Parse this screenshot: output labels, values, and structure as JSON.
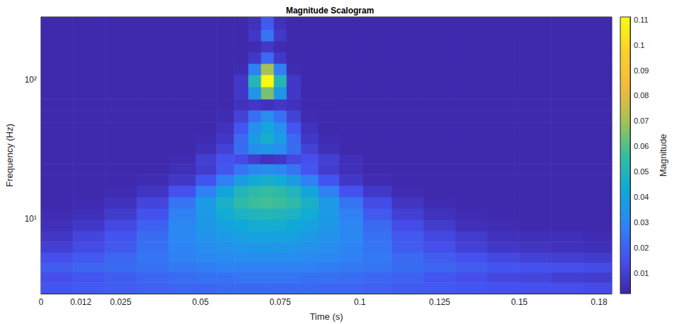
{
  "chart_data": {
    "type": "heatmap",
    "title": "Magnitude Scalogram",
    "x_label": "Time (s)",
    "y_label": "Frequency (Hz)",
    "log": "y",
    "grid": false,
    "xlim": [
      0,
      0.179
    ],
    "xticks": [
      0,
      {
        "value": 0.0125,
        "label": "0.012"
      },
      0.025,
      0.05,
      0.075,
      0.1,
      0.125,
      0.15,
      {
        "value": 0.175,
        "label": "0.18"
      }
    ],
    "ylim": [
      2.9,
      285
    ],
    "yticks": [
      {
        "value": 10,
        "label": "10¹"
      },
      {
        "value": 100,
        "label": "10²"
      }
    ],
    "x": [
      0.005,
      0.015,
      0.025,
      0.035,
      0.045,
      0.052,
      0.058,
      0.063,
      0.067,
      0.071,
      0.075,
      0.079,
      0.084,
      0.09,
      0.097,
      0.105,
      0.115,
      0.125,
      0.135,
      0.145,
      0.155,
      0.165,
      0.175
    ],
    "y": [
      3.2,
      3.8,
      4.5,
      5.3,
      6.3,
      7.5,
      9,
      11,
      13,
      16,
      19,
      23,
      27,
      32,
      38,
      45,
      55,
      67,
      80,
      100,
      120,
      145,
      175,
      210,
      255
    ],
    "values": [
      [
        0.017,
        0.018,
        0.019,
        0.02,
        0.021,
        0.021,
        0.022,
        0.022,
        0.022,
        0.022,
        0.022,
        0.022,
        0.022,
        0.021,
        0.021,
        0.02,
        0.019,
        0.018,
        0.017,
        0.016,
        0.015,
        0.015,
        0.014
      ],
      [
        0.015,
        0.017,
        0.019,
        0.021,
        0.023,
        0.024,
        0.024,
        0.025,
        0.025,
        0.025,
        0.025,
        0.025,
        0.024,
        0.024,
        0.023,
        0.021,
        0.02,
        0.017,
        0.015,
        0.013,
        0.012,
        0.01,
        0.009
      ],
      [
        0.019,
        0.021,
        0.022,
        0.024,
        0.026,
        0.027,
        0.028,
        0.028,
        0.028,
        0.028,
        0.028,
        0.028,
        0.028,
        0.027,
        0.026,
        0.025,
        0.023,
        0.021,
        0.019,
        0.017,
        0.016,
        0.015,
        0.014
      ],
      [
        0.015,
        0.018,
        0.021,
        0.025,
        0.028,
        0.03,
        0.031,
        0.032,
        0.032,
        0.032,
        0.032,
        0.032,
        0.031,
        0.03,
        0.028,
        0.026,
        0.022,
        0.019,
        0.016,
        0.013,
        0.011,
        0.01,
        0.009
      ],
      [
        0.01,
        0.014,
        0.018,
        0.024,
        0.029,
        0.032,
        0.034,
        0.035,
        0.036,
        0.036,
        0.036,
        0.035,
        0.034,
        0.032,
        0.029,
        0.025,
        0.019,
        0.015,
        0.011,
        0.008,
        0.007,
        0.006,
        0.005
      ],
      [
        0.008,
        0.012,
        0.017,
        0.023,
        0.03,
        0.034,
        0.037,
        0.039,
        0.04,
        0.04,
        0.04,
        0.039,
        0.037,
        0.034,
        0.03,
        0.024,
        0.018,
        0.013,
        0.009,
        0.006,
        0.005,
        0.005,
        0.004
      ],
      [
        0.005,
        0.008,
        0.013,
        0.02,
        0.03,
        0.036,
        0.04,
        0.043,
        0.045,
        0.045,
        0.045,
        0.043,
        0.04,
        0.036,
        0.03,
        0.022,
        0.014,
        0.009,
        0.005,
        0.004,
        0.003,
        0.003,
        0.003
      ],
      [
        0.004,
        0.005,
        0.009,
        0.016,
        0.028,
        0.037,
        0.044,
        0.048,
        0.05,
        0.051,
        0.05,
        0.048,
        0.044,
        0.037,
        0.028,
        0.018,
        0.01,
        0.006,
        0.004,
        0.003,
        0.003,
        0.003,
        0.003
      ],
      [
        0.003,
        0.004,
        0.006,
        0.012,
        0.025,
        0.037,
        0.047,
        0.054,
        0.057,
        0.058,
        0.057,
        0.054,
        0.047,
        0.037,
        0.025,
        0.014,
        0.007,
        0.004,
        0.003,
        0.003,
        0.003,
        0.003,
        0.003
      ],
      [
        0.003,
        0.003,
        0.004,
        0.007,
        0.016,
        0.028,
        0.041,
        0.05,
        0.054,
        0.056,
        0.054,
        0.05,
        0.041,
        0.028,
        0.016,
        0.008,
        0.004,
        0.003,
        0.003,
        0.003,
        0.003,
        0.003,
        0.003
      ],
      [
        0.003,
        0.003,
        0.003,
        0.004,
        0.008,
        0.017,
        0.028,
        0.038,
        0.044,
        0.046,
        0.044,
        0.038,
        0.028,
        0.017,
        0.008,
        0.004,
        0.003,
        0.003,
        0.003,
        0.003,
        0.003,
        0.003,
        0.003
      ],
      [
        0.003,
        0.003,
        0.003,
        0.003,
        0.005,
        0.009,
        0.017,
        0.025,
        0.03,
        0.032,
        0.03,
        0.025,
        0.017,
        0.009,
        0.005,
        0.003,
        0.003,
        0.003,
        0.003,
        0.003,
        0.003,
        0.003,
        0.003
      ],
      [
        0.003,
        0.003,
        0.003,
        0.003,
        0.004,
        0.01,
        0.016,
        0.014,
        0.009,
        0.006,
        0.008,
        0.013,
        0.015,
        0.01,
        0.005,
        0.003,
        0.003,
        0.003,
        0.003,
        0.003,
        0.003,
        0.003,
        0.003
      ],
      [
        0.003,
        0.003,
        0.003,
        0.003,
        0.003,
        0.005,
        0.011,
        0.023,
        0.032,
        0.036,
        0.032,
        0.023,
        0.011,
        0.005,
        0.003,
        0.003,
        0.003,
        0.003,
        0.003,
        0.003,
        0.003,
        0.003,
        0.003
      ],
      [
        0.003,
        0.003,
        0.003,
        0.003,
        0.003,
        0.004,
        0.008,
        0.022,
        0.038,
        0.046,
        0.038,
        0.022,
        0.008,
        0.004,
        0.003,
        0.003,
        0.003,
        0.003,
        0.003,
        0.003,
        0.003,
        0.003,
        0.003
      ],
      [
        0.003,
        0.003,
        0.003,
        0.003,
        0.003,
        0.003,
        0.006,
        0.017,
        0.033,
        0.042,
        0.033,
        0.017,
        0.006,
        0.003,
        0.003,
        0.003,
        0.003,
        0.003,
        0.003,
        0.003,
        0.003,
        0.003,
        0.003
      ],
      [
        0.003,
        0.003,
        0.003,
        0.003,
        0.003,
        0.003,
        0.004,
        0.011,
        0.024,
        0.032,
        0.024,
        0.011,
        0.004,
        0.003,
        0.003,
        0.003,
        0.003,
        0.003,
        0.003,
        0.003,
        0.003,
        0.003,
        0.003
      ],
      [
        0.003,
        0.003,
        0.003,
        0.003,
        0.003,
        0.003,
        0.003,
        0.006,
        0.008,
        0.006,
        0.008,
        0.006,
        0.003,
        0.003,
        0.003,
        0.003,
        0.003,
        0.003,
        0.003,
        0.003,
        0.003,
        0.003,
        0.003
      ],
      [
        0.003,
        0.003,
        0.003,
        0.003,
        0.003,
        0.003,
        0.003,
        0.008,
        0.036,
        0.065,
        0.036,
        0.008,
        0.003,
        0.003,
        0.003,
        0.003,
        0.003,
        0.003,
        0.003,
        0.003,
        0.003,
        0.003,
        0.003
      ],
      [
        0.003,
        0.003,
        0.003,
        0.003,
        0.003,
        0.003,
        0.003,
        0.008,
        0.051,
        0.11,
        0.051,
        0.008,
        0.003,
        0.003,
        0.003,
        0.003,
        0.003,
        0.003,
        0.003,
        0.003,
        0.003,
        0.003,
        0.003
      ],
      [
        0.003,
        0.003,
        0.003,
        0.003,
        0.003,
        0.003,
        0.003,
        0.004,
        0.028,
        0.07,
        0.028,
        0.004,
        0.003,
        0.003,
        0.003,
        0.003,
        0.003,
        0.003,
        0.003,
        0.003,
        0.003,
        0.003,
        0.003
      ],
      [
        0.003,
        0.003,
        0.003,
        0.003,
        0.003,
        0.003,
        0.003,
        0.003,
        0.008,
        0.022,
        0.008,
        0.003,
        0.003,
        0.003,
        0.003,
        0.003,
        0.003,
        0.003,
        0.003,
        0.003,
        0.003,
        0.003,
        0.003
      ],
      [
        0.003,
        0.003,
        0.003,
        0.003,
        0.003,
        0.003,
        0.003,
        0.003,
        0.004,
        0.008,
        0.004,
        0.003,
        0.003,
        0.003,
        0.003,
        0.003,
        0.003,
        0.003,
        0.003,
        0.003,
        0.003,
        0.003,
        0.003
      ],
      [
        0.003,
        0.003,
        0.003,
        0.003,
        0.003,
        0.003,
        0.003,
        0.003,
        0.008,
        0.025,
        0.008,
        0.003,
        0.003,
        0.003,
        0.003,
        0.003,
        0.003,
        0.003,
        0.003,
        0.003,
        0.003,
        0.003,
        0.003
      ],
      [
        0.003,
        0.003,
        0.003,
        0.003,
        0.003,
        0.003,
        0.003,
        0.003,
        0.006,
        0.018,
        0.006,
        0.003,
        0.003,
        0.003,
        0.003,
        0.003,
        0.003,
        0.003,
        0.003,
        0.003,
        0.003,
        0.003,
        0.003
      ]
    ],
    "colorbar": {
      "label": "Magnitude",
      "range": [
        0.002,
        0.111
      ],
      "ticks": [
        0.01,
        0.02,
        0.03,
        0.04,
        0.05,
        0.06,
        0.07,
        0.08,
        0.09,
        0.1,
        0.11
      ]
    }
  }
}
